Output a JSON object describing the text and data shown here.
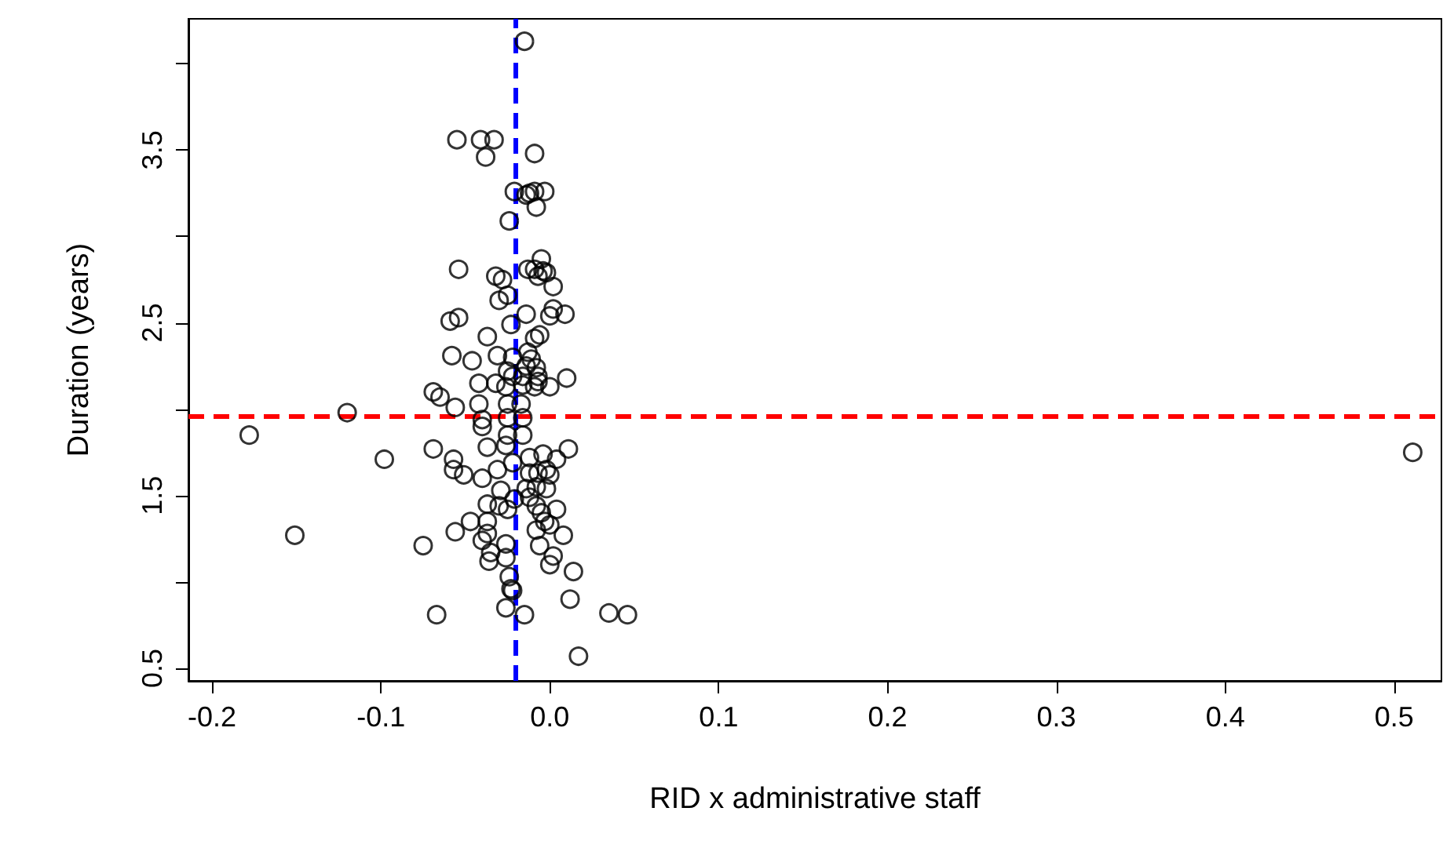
{
  "chart_data": {
    "type": "scatter",
    "xlabel": "RID x administrative staff",
    "ylabel": "Duration (years)",
    "xlim": [
      -0.214,
      0.528
    ],
    "ylim": [
      0.427,
      4.26
    ],
    "xticks": [
      -0.2,
      -0.1,
      {
        "value": 0,
        "label": "0.0"
      },
      0.1,
      0.2,
      0.3,
      0.4,
      0.5
    ],
    "yticks": [
      0.5,
      {
        "value": 1,
        "label": null
      },
      1.5,
      {
        "value": 2,
        "label": null
      },
      2.5,
      {
        "value": 3,
        "label": null
      },
      3.5,
      {
        "value": 4,
        "label": null
      }
    ],
    "marker": "circle",
    "ref_lines": [
      {
        "axis": "y",
        "value": 1.96,
        "color": "#ff0000",
        "line_style": "dashed"
      },
      {
        "axis": "x",
        "value": -0.021,
        "color": "#0000ff",
        "line_style": "dashed"
      }
    ],
    "series": [
      {
        "color": "#000000",
        "x": [
          -0.015,
          -0.055,
          -0.041,
          -0.033,
          -0.038,
          -0.009,
          -0.021,
          -0.014,
          -0.009,
          -0.003,
          -0.008,
          -0.012,
          -0.024,
          -0.054,
          -0.032,
          -0.028,
          -0.013,
          -0.009,
          -0.005,
          -0.004,
          -0.007,
          -0.002,
          0.002,
          -0.03,
          -0.025,
          -0.014,
          0.002,
          0.009,
          0.0,
          -0.059,
          -0.054,
          -0.023,
          -0.037,
          -0.006,
          -0.009,
          -0.058,
          -0.046,
          -0.031,
          -0.022,
          -0.013,
          -0.011,
          -0.014,
          -0.008,
          -0.007,
          -0.025,
          -0.022,
          -0.016,
          0.01,
          -0.042,
          -0.032,
          -0.026,
          -0.016,
          -0.009,
          0.0,
          -0.007,
          -0.069,
          -0.065,
          -0.056,
          -0.042,
          -0.025,
          -0.017,
          -0.04,
          -0.04,
          -0.025,
          -0.016,
          -0.025,
          -0.016,
          -0.12,
          -0.178,
          -0.098,
          -0.151,
          -0.069,
          -0.057,
          -0.057,
          -0.051,
          -0.037,
          -0.026,
          -0.04,
          -0.031,
          -0.022,
          -0.012,
          -0.004,
          0.004,
          0.011,
          -0.012,
          -0.007,
          -0.002,
          0.0,
          -0.014,
          -0.008,
          -0.002,
          -0.029,
          -0.021,
          -0.037,
          -0.03,
          -0.025,
          -0.012,
          -0.008,
          -0.005,
          0.004,
          -0.047,
          -0.037,
          -0.037,
          -0.056,
          -0.008,
          -0.003,
          0.0,
          0.008,
          -0.04,
          -0.035,
          -0.036,
          -0.026,
          -0.026,
          -0.075,
          -0.006,
          0.002,
          0.0,
          0.014,
          -0.024,
          -0.023,
          -0.022,
          0.012,
          -0.067,
          -0.026,
          -0.015,
          0.035,
          0.046,
          0.017,
          0.511
        ],
        "values": [
          4.13,
          3.56,
          3.56,
          3.56,
          3.46,
          3.48,
          3.26,
          3.24,
          3.26,
          3.26,
          3.17,
          3.25,
          3.09,
          2.81,
          2.77,
          2.75,
          2.81,
          2.81,
          2.87,
          2.8,
          2.77,
          2.79,
          2.71,
          2.63,
          2.66,
          2.55,
          2.58,
          2.55,
          2.54,
          2.51,
          2.53,
          2.49,
          2.42,
          2.43,
          2.41,
          2.31,
          2.28,
          2.31,
          2.3,
          2.33,
          2.29,
          2.25,
          2.24,
          2.19,
          2.22,
          2.19,
          2.19,
          2.18,
          2.15,
          2.15,
          2.13,
          2.14,
          2.13,
          2.13,
          2.16,
          2.1,
          2.07,
          2.01,
          2.03,
          2.03,
          2.03,
          1.94,
          1.9,
          1.95,
          1.95,
          1.85,
          1.85,
          1.98,
          1.85,
          1.71,
          1.27,
          1.77,
          1.71,
          1.65,
          1.62,
          1.78,
          1.79,
          1.6,
          1.65,
          1.69,
          1.72,
          1.74,
          1.71,
          1.77,
          1.63,
          1.63,
          1.65,
          1.62,
          1.54,
          1.55,
          1.54,
          1.53,
          1.48,
          1.45,
          1.44,
          1.42,
          1.49,
          1.44,
          1.4,
          1.42,
          1.35,
          1.35,
          1.28,
          1.29,
          1.3,
          1.35,
          1.33,
          1.27,
          1.24,
          1.17,
          1.12,
          1.22,
          1.14,
          1.21,
          1.21,
          1.15,
          1.1,
          1.06,
          1.03,
          0.96,
          0.95,
          0.9,
          0.81,
          0.85,
          0.81,
          0.82,
          0.81,
          0.57,
          1.75
        ]
      }
    ]
  }
}
